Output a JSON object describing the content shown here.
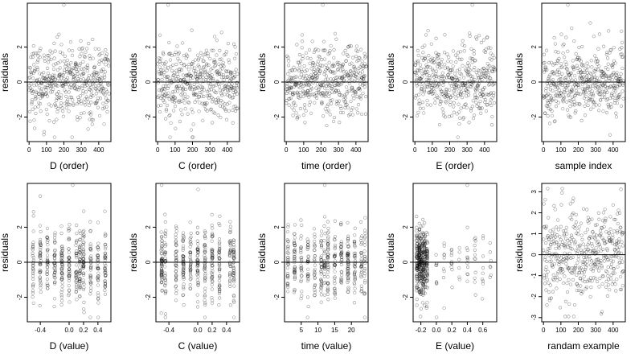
{
  "figure": {
    "background": "#ffffff",
    "point_color": "#000000",
    "ylabel": "residuals"
  },
  "chart_data": [
    {
      "type": "scatter",
      "xlabel": "D (order)",
      "ylabel": "residuals",
      "xlim": [
        -10,
        470
      ],
      "ylim": [
        -3.4,
        4.5
      ],
      "xticks": [
        0,
        100,
        200,
        300,
        400
      ],
      "yticks": [
        -2,
        0,
        2
      ],
      "hline": 0,
      "n": 460,
      "x_kind": "index",
      "marker": "open-circle",
      "outlier": [
        200,
        4.4
      ]
    },
    {
      "type": "scatter",
      "xlabel": "C (order)",
      "ylabel": "residuals",
      "xlim": [
        -10,
        470
      ],
      "ylim": [
        -3.4,
        4.5
      ],
      "xticks": [
        0,
        100,
        200,
        300,
        400
      ],
      "yticks": [
        -2,
        0,
        2
      ],
      "hline": 0,
      "n": 460,
      "x_kind": "index",
      "marker": "open-circle",
      "outlier": [
        60,
        4.4
      ]
    },
    {
      "type": "scatter",
      "xlabel": "time (order)",
      "ylabel": "residuals",
      "xlim": [
        -10,
        470
      ],
      "ylim": [
        -3.4,
        4.5
      ],
      "xticks": [
        0,
        100,
        200,
        300,
        400
      ],
      "yticks": [
        -2,
        0,
        2
      ],
      "hline": 0,
      "n": 460,
      "x_kind": "index",
      "marker": "open-circle",
      "outlier": [
        210,
        4.4
      ]
    },
    {
      "type": "scatter",
      "xlabel": "E (order)",
      "ylabel": "residuals",
      "xlim": [
        -10,
        470
      ],
      "ylim": [
        -3.4,
        4.5
      ],
      "xticks": [
        0,
        100,
        200,
        300,
        400
      ],
      "yticks": [
        -2,
        0,
        2
      ],
      "hline": 0,
      "n": 460,
      "x_kind": "index",
      "marker": "open-circle",
      "outlier": [
        330,
        4.4
      ]
    },
    {
      "type": "scatter",
      "xlabel": "sample index",
      "ylabel": "residuals",
      "xlim": [
        -10,
        470
      ],
      "ylim": [
        -3.4,
        4.5
      ],
      "xticks": [
        0,
        100,
        200,
        300,
        400
      ],
      "yticks": [
        -2,
        0,
        2
      ],
      "hline": 0,
      "n": 460,
      "x_kind": "index",
      "marker": "open-circle",
      "outlier": [
        140,
        4.4
      ]
    },
    {
      "type": "scatter",
      "xlabel": "D (value)",
      "ylabel": "residuals",
      "xlim": [
        -0.58,
        0.58
      ],
      "ylim": [
        -3.4,
        4.5
      ],
      "xticks": [
        -0.4,
        0.0,
        0.2,
        0.4
      ],
      "xticklabels": [
        "-0.4",
        "0.0",
        "0.2",
        "0.4"
      ],
      "yticks": [
        -2,
        0,
        2
      ],
      "hline": 0,
      "n": 460,
      "x_kind": "values",
      "x_levels": [
        -0.5,
        -0.4,
        -0.3,
        -0.2,
        -0.1,
        0.0,
        0.1,
        0.15,
        0.2,
        0.3,
        0.4,
        0.5
      ],
      "marker": "open-circle",
      "outlier": [
        0.05,
        4.4
      ]
    },
    {
      "type": "scatter",
      "xlabel": "C (value)",
      "ylabel": "residuals",
      "xlim": [
        -0.58,
        0.58
      ],
      "ylim": [
        -3.4,
        4.5
      ],
      "xticks": [
        -0.4,
        0.0,
        0.2,
        0.4
      ],
      "xticklabels": [
        "-0.4",
        "0.0",
        "0.2",
        "0.4"
      ],
      "yticks": [
        -2,
        0,
        2
      ],
      "hline": 0,
      "n": 460,
      "x_kind": "values",
      "x_levels": [
        -0.5,
        -0.45,
        -0.3,
        -0.2,
        -0.1,
        0.0,
        0.1,
        0.2,
        0.3,
        0.45,
        0.5
      ],
      "marker": "open-circle",
      "outlier": [
        -0.5,
        4.4
      ]
    },
    {
      "type": "scatter",
      "xlabel": "time (value)",
      "ylabel": "residuals",
      "xlim": [
        0,
        25
      ],
      "ylim": [
        -3.4,
        4.5
      ],
      "xticks": [
        5,
        10,
        15,
        20
      ],
      "yticks": [
        -2,
        0,
        2
      ],
      "hline": 0,
      "n": 460,
      "x_kind": "values",
      "x_levels": [
        1,
        3,
        5,
        7,
        9,
        11,
        12,
        13,
        15,
        17,
        19,
        21,
        23,
        24
      ],
      "marker": "open-circle",
      "outlier": [
        12,
        4.4
      ]
    },
    {
      "type": "scatter",
      "xlabel": "E (value)",
      "ylabel": "residuals",
      "xlim": [
        -0.3,
        0.78
      ],
      "ylim": [
        -3.4,
        4.5
      ],
      "xticks": [
        -0.2,
        0.0,
        0.2,
        0.4,
        0.6
      ],
      "xticklabels": [
        "-0.2",
        "0.0",
        "0.2",
        "0.4",
        "0.6"
      ],
      "yticks": [
        -2,
        0,
        2
      ],
      "hline": 0,
      "n": 460,
      "x_kind": "values",
      "x_levels": [
        -0.25,
        -0.22,
        -0.2,
        -0.17,
        -0.15,
        -0.12,
        0.0,
        0.1,
        0.2,
        0.3,
        0.4,
        0.5,
        0.6,
        0.7
      ],
      "x_weights": [
        6,
        6,
        6,
        6,
        6,
        5,
        1,
        1,
        1,
        1,
        1,
        1,
        1,
        1
      ],
      "marker": "open-circle",
      "outlier": [
        0.4,
        4.4
      ]
    },
    {
      "type": "scatter",
      "xlabel": "randam example",
      "ylabel": "residuals",
      "xlim": [
        -10,
        470
      ],
      "ylim": [
        -3.2,
        3.4
      ],
      "xticks": [
        0,
        100,
        200,
        300,
        400
      ],
      "yticks": [
        -3,
        -2,
        -1,
        0,
        1,
        2,
        3
      ],
      "hline": 0,
      "n": 460,
      "x_kind": "index",
      "marker": "open-circle",
      "outlier": [
        0,
        0
      ]
    }
  ]
}
